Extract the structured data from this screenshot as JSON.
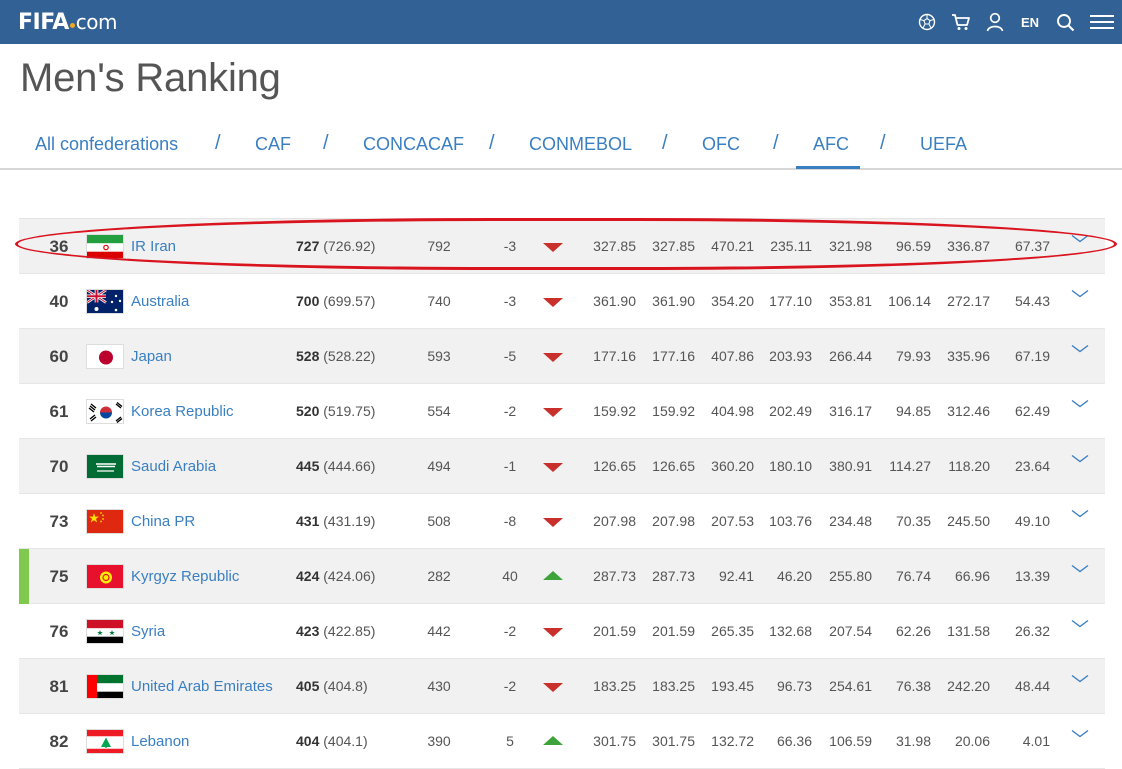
{
  "header": {
    "logo_main": "FIFA",
    "logo_suffix": "com",
    "language": "EN",
    "icons": [
      "ball-icon",
      "cart-icon",
      "user-icon",
      "search-icon",
      "menu-icon"
    ]
  },
  "page_title": "Men's Ranking",
  "tabs": [
    {
      "label": "All confederations",
      "active": false
    },
    {
      "label": "CAF",
      "active": false
    },
    {
      "label": "CONCACAF",
      "active": false
    },
    {
      "label": "CONMEBOL",
      "active": false
    },
    {
      "label": "OFC",
      "active": false
    },
    {
      "label": "AFC",
      "active": true
    },
    {
      "label": "UEFA",
      "active": false
    }
  ],
  "tab_separator": "/",
  "rows": [
    {
      "rank": "36",
      "flag": "iran-flag",
      "country": "IR Iran",
      "total": "727",
      "total_exact": "(726.92)",
      "previous": "792",
      "movement": "-3",
      "trend": "down",
      "values": [
        "327.85",
        "327.85",
        "470.21",
        "235.11",
        "321.98",
        "96.59",
        "336.87",
        "67.37"
      ]
    },
    {
      "rank": "40",
      "flag": "australia-flag",
      "country": "Australia",
      "total": "700",
      "total_exact": "(699.57)",
      "previous": "740",
      "movement": "-3",
      "trend": "down",
      "values": [
        "361.90",
        "361.90",
        "354.20",
        "177.10",
        "353.81",
        "106.14",
        "272.17",
        "54.43"
      ]
    },
    {
      "rank": "60",
      "flag": "japan-flag",
      "country": "Japan",
      "total": "528",
      "total_exact": "(528.22)",
      "previous": "593",
      "movement": "-5",
      "trend": "down",
      "values": [
        "177.16",
        "177.16",
        "407.86",
        "203.93",
        "266.44",
        "79.93",
        "335.96",
        "67.19"
      ]
    },
    {
      "rank": "61",
      "flag": "korea-flag",
      "country": "Korea Republic",
      "total": "520",
      "total_exact": "(519.75)",
      "previous": "554",
      "movement": "-2",
      "trend": "down",
      "values": [
        "159.92",
        "159.92",
        "404.98",
        "202.49",
        "316.17",
        "94.85",
        "312.46",
        "62.49"
      ]
    },
    {
      "rank": "70",
      "flag": "saudi-flag",
      "country": "Saudi Arabia",
      "total": "445",
      "total_exact": "(444.66)",
      "previous": "494",
      "movement": "-1",
      "trend": "down",
      "values": [
        "126.65",
        "126.65",
        "360.20",
        "180.10",
        "380.91",
        "114.27",
        "118.20",
        "23.64"
      ]
    },
    {
      "rank": "73",
      "flag": "china-flag",
      "country": "China PR",
      "total": "431",
      "total_exact": "(431.19)",
      "previous": "508",
      "movement": "-8",
      "trend": "down",
      "values": [
        "207.98",
        "207.98",
        "207.53",
        "103.76",
        "234.48",
        "70.35",
        "245.50",
        "49.10"
      ]
    },
    {
      "rank": "75",
      "flag": "kyrgyz-flag",
      "country": "Kyrgyz Republic",
      "total": "424",
      "total_exact": "(424.06)",
      "previous": "282",
      "movement": "40",
      "trend": "up",
      "values": [
        "287.73",
        "287.73",
        "92.41",
        "46.20",
        "255.80",
        "76.74",
        "66.96",
        "13.39"
      ]
    },
    {
      "rank": "76",
      "flag": "syria-flag",
      "country": "Syria",
      "total": "423",
      "total_exact": "(422.85)",
      "previous": "442",
      "movement": "-2",
      "trend": "down",
      "values": [
        "201.59",
        "201.59",
        "265.35",
        "132.68",
        "207.54",
        "62.26",
        "131.58",
        "26.32"
      ]
    },
    {
      "rank": "81",
      "flag": "uae-flag",
      "country": "United Arab Emirates",
      "total": "405",
      "total_exact": "(404.8)",
      "previous": "430",
      "movement": "-2",
      "trend": "down",
      "values": [
        "183.25",
        "183.25",
        "193.45",
        "96.73",
        "254.61",
        "76.38",
        "242.20",
        "48.44"
      ]
    },
    {
      "rank": "82",
      "flag": "lebanon-flag",
      "country": "Lebanon",
      "total": "404",
      "total_exact": "(404.1)",
      "previous": "390",
      "movement": "5",
      "trend": "up",
      "values": [
        "301.75",
        "301.75",
        "132.72",
        "66.36",
        "106.59",
        "31.98",
        "20.06",
        "4.01"
      ]
    }
  ],
  "colors": {
    "header_bg": "#326295",
    "link": "#3a7fc1",
    "down": "#c9302c",
    "up": "#3ea33a",
    "highlight": "#d9141f"
  }
}
